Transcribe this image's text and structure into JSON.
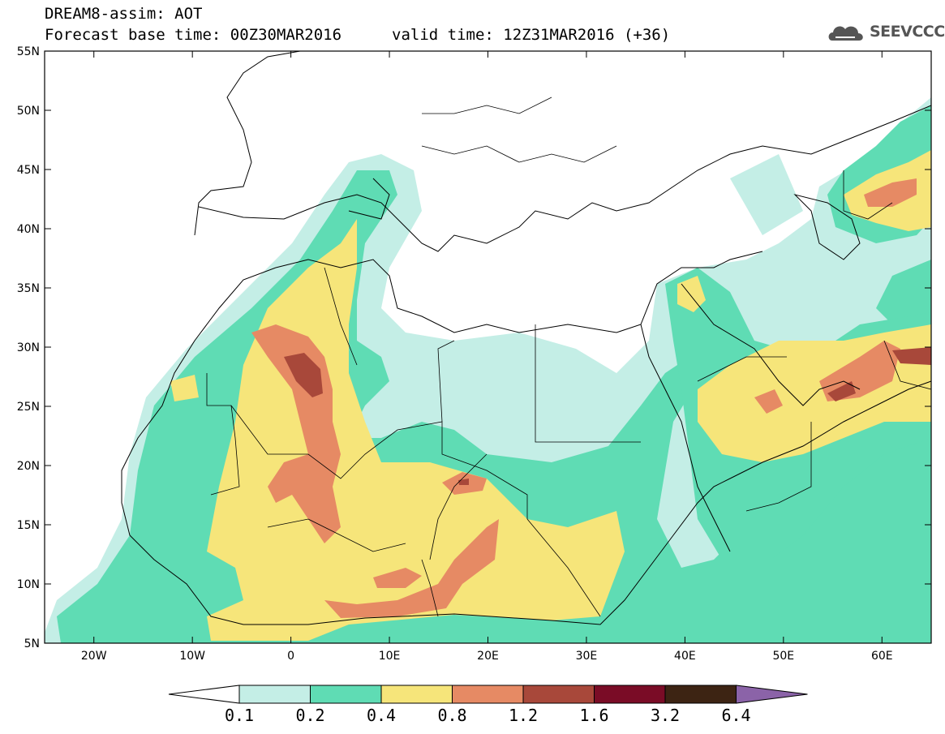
{
  "header": {
    "title_line1": "DREAM8-assim: AOT",
    "title_line2": "Forecast base time: 00Z30MAR2016",
    "valid_time": "valid time: 12Z31MAR2016 (+36)",
    "logo_text": "SEEVCCC"
  },
  "map": {
    "lat_range": [
      5,
      55
    ],
    "lon_range": [
      -25,
      65
    ],
    "lat_ticks": [
      "5N",
      "10N",
      "15N",
      "20N",
      "25N",
      "30N",
      "35N",
      "40N",
      "45N",
      "50N",
      "55N"
    ],
    "lon_ticks": [
      "20W",
      "10W",
      "0",
      "10E",
      "20E",
      "30E",
      "40E",
      "50E",
      "60E"
    ],
    "variable": "AOT"
  },
  "colorbar": {
    "labels": [
      "0.1",
      "0.2",
      "0.4",
      "0.8",
      "1.2",
      "1.6",
      "3.2",
      "6.4"
    ],
    "colors": [
      "#ffffff",
      "#c4eee6",
      "#5fdcb4",
      "#f6e57a",
      "#e68a64",
      "#a8483a",
      "#7a0c26",
      "#3d2413",
      "#8b63a8"
    ]
  },
  "colors": {
    "c1": "#c4eee6",
    "c2": "#5fdcb4",
    "c3": "#f6e57a",
    "c4": "#e68a64",
    "c5": "#a8483a",
    "c6": "#7a0c26",
    "c7": "#3d2413"
  }
}
